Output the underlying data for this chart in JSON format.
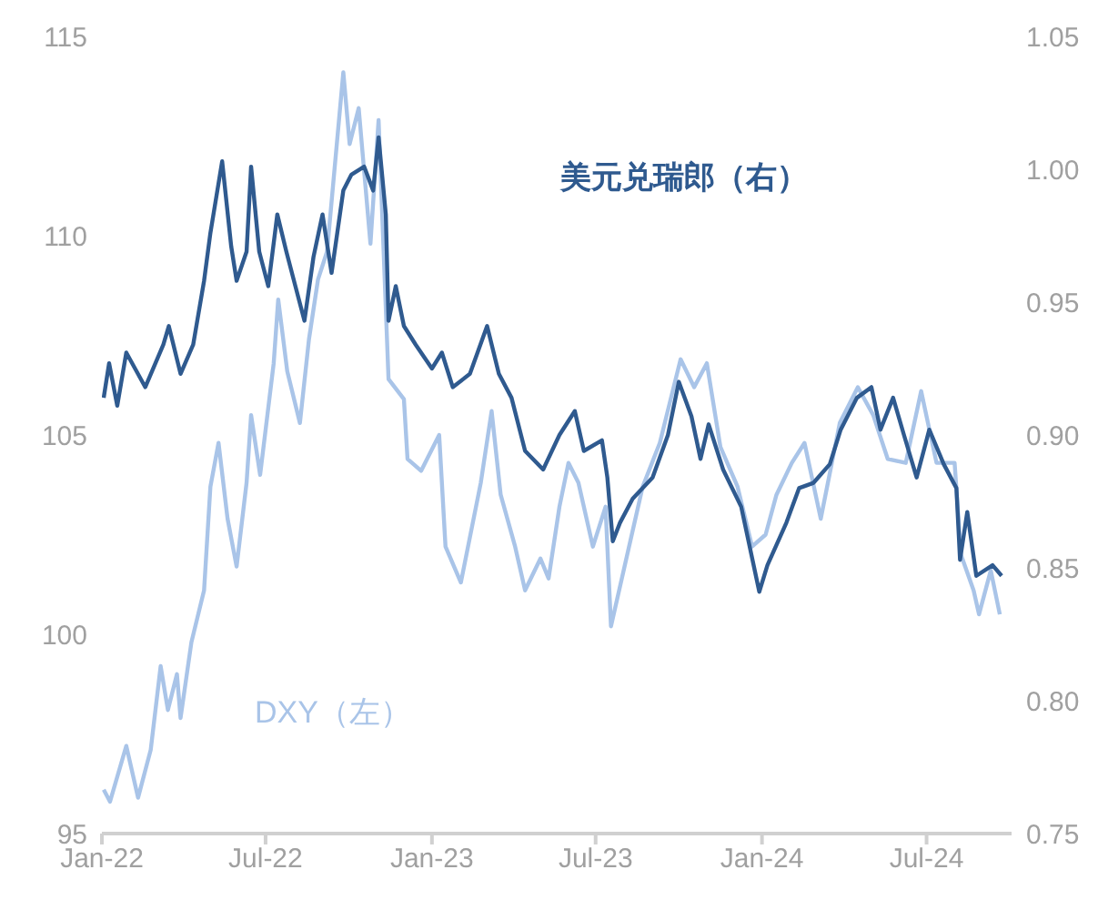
{
  "chart_data": {
    "type": "line",
    "xlim": [
      "2022-01-01",
      "2024-10-03"
    ],
    "xticks": [
      {
        "value": "2022-01-01",
        "label": "Jan-22"
      },
      {
        "value": "2022-07-01",
        "label": "Jul-22"
      },
      {
        "value": "2023-01-01",
        "label": "Jan-23"
      },
      {
        "value": "2023-07-01",
        "label": "Jul-23"
      },
      {
        "value": "2024-01-01",
        "label": "Jan-24"
      },
      {
        "value": "2024-07-01",
        "label": "Jul-24"
      }
    ],
    "ylim": [
      95,
      115
    ],
    "yticks": [
      95,
      100,
      105,
      110,
      115
    ],
    "y2lim": [
      0.75,
      1.05
    ],
    "y2ticks": [
      {
        "value": 0.75,
        "label": "0.75"
      },
      {
        "value": 0.8,
        "label": "0.80"
      },
      {
        "value": 0.85,
        "label": "0.85"
      },
      {
        "value": 0.9,
        "label": "0.90"
      },
      {
        "value": 0.95,
        "label": "0.95"
      },
      {
        "value": 1.0,
        "label": "1.00"
      },
      {
        "value": 1.05,
        "label": "1.05"
      }
    ],
    "marker": "none",
    "line_style": "solid",
    "series": [
      {
        "name": "DXY（左）",
        "color": "#a9c4e8",
        "axis": "y",
        "x": [
          "2022-01-03",
          "2022-01-10",
          "2022-01-28",
          "2022-02-10",
          "2022-02-24",
          "2022-03-07",
          "2022-03-15",
          "2022-03-25",
          "2022-03-29",
          "2022-04-10",
          "2022-04-24",
          "2022-05-01",
          "2022-05-10",
          "2022-05-20",
          "2022-05-30",
          "2022-06-10",
          "2022-06-15",
          "2022-06-25",
          "2022-07-10",
          "2022-07-15",
          "2022-07-25",
          "2022-08-08",
          "2022-08-18",
          "2022-08-28",
          "2022-09-07",
          "2022-09-25",
          "2022-10-02",
          "2022-10-12",
          "2022-10-25",
          "2022-11-03",
          "2022-11-14",
          "2022-12-01",
          "2022-12-05",
          "2022-12-20",
          "2023-01-09",
          "2023-01-16",
          "2023-02-02",
          "2023-02-24",
          "2023-03-08",
          "2023-03-18",
          "2023-04-03",
          "2023-04-14",
          "2023-05-01",
          "2023-05-10",
          "2023-05-22",
          "2023-06-01",
          "2023-06-12",
          "2023-06-28",
          "2023-07-12",
          "2023-07-18",
          "2023-08-02",
          "2023-08-22",
          "2023-09-10",
          "2023-10-03",
          "2023-10-18",
          "2023-11-01",
          "2023-11-16",
          "2023-12-05",
          "2023-12-21",
          "2024-01-05",
          "2024-01-17",
          "2024-02-03",
          "2024-02-17",
          "2024-03-06",
          "2024-03-27",
          "2024-04-16",
          "2024-05-03",
          "2024-05-19",
          "2024-06-08",
          "2024-06-25",
          "2024-07-12",
          "2024-08-01",
          "2024-08-08",
          "2024-08-22",
          "2024-08-28",
          "2024-09-10",
          "2024-09-20"
        ],
        "values": [
          96.1,
          95.8,
          97.2,
          95.9,
          97.1,
          99.2,
          98.1,
          99.0,
          97.9,
          99.8,
          101.1,
          103.7,
          104.8,
          102.9,
          101.7,
          103.8,
          105.5,
          104.0,
          106.8,
          108.4,
          106.6,
          105.3,
          107.4,
          108.9,
          109.6,
          114.1,
          112.3,
          113.2,
          109.8,
          112.9,
          106.4,
          105.9,
          104.4,
          104.1,
          105.0,
          102.2,
          101.3,
          103.8,
          105.6,
          103.5,
          102.2,
          101.1,
          101.9,
          101.4,
          103.2,
          104.3,
          103.8,
          102.2,
          103.2,
          100.2,
          101.7,
          103.7,
          104.8,
          106.9,
          106.2,
          106.8,
          104.7,
          103.7,
          102.2,
          102.5,
          103.5,
          104.3,
          104.8,
          102.9,
          105.3,
          106.2,
          105.5,
          104.4,
          104.3,
          106.1,
          104.3,
          104.3,
          102.0,
          101.1,
          100.5,
          101.6,
          100.5
        ]
      },
      {
        "name": "美元兑瑞郎（右）",
        "color": "#2f5a8f",
        "axis": "y2",
        "x": [
          "2022-01-03",
          "2022-01-09",
          "2022-01-18",
          "2022-01-28",
          "2022-02-18",
          "2022-03-10",
          "2022-03-16",
          "2022-03-29",
          "2022-04-12",
          "2022-04-24",
          "2022-05-01",
          "2022-05-14",
          "2022-05-24",
          "2022-05-30",
          "2022-06-10",
          "2022-06-15",
          "2022-06-24",
          "2022-07-04",
          "2022-07-14",
          "2022-07-24",
          "2022-08-03",
          "2022-08-13",
          "2022-08-23",
          "2022-09-02",
          "2022-09-12",
          "2022-09-25",
          "2022-10-04",
          "2022-10-18",
          "2022-10-28",
          "2022-11-03",
          "2022-11-11",
          "2022-11-14",
          "2022-11-22",
          "2022-12-01",
          "2022-12-14",
          "2023-01-01",
          "2023-01-12",
          "2023-01-24",
          "2023-02-12",
          "2023-03-03",
          "2023-03-16",
          "2023-03-30",
          "2023-04-14",
          "2023-05-04",
          "2023-05-22",
          "2023-06-08",
          "2023-06-18",
          "2023-07-08",
          "2023-07-14",
          "2023-07-20",
          "2023-07-28",
          "2023-08-11",
          "2023-09-02",
          "2023-09-19",
          "2023-10-01",
          "2023-10-15",
          "2023-10-25",
          "2023-11-03",
          "2023-11-19",
          "2023-12-09",
          "2023-12-29",
          "2024-01-07",
          "2024-01-28",
          "2024-02-11",
          "2024-02-27",
          "2024-03-16",
          "2024-03-28",
          "2024-04-15",
          "2024-05-01",
          "2024-05-11",
          "2024-05-25",
          "2024-06-06",
          "2024-06-20",
          "2024-07-04",
          "2024-07-20",
          "2024-08-03",
          "2024-08-07",
          "2024-08-15",
          "2024-08-25",
          "2024-09-12",
          "2024-09-22"
        ],
        "values": [
          0.914,
          0.927,
          0.911,
          0.931,
          0.918,
          0.934,
          0.941,
          0.923,
          0.934,
          0.958,
          0.976,
          1.003,
          0.971,
          0.958,
          0.969,
          1.001,
          0.969,
          0.956,
          0.983,
          0.969,
          0.956,
          0.943,
          0.967,
          0.983,
          0.961,
          0.992,
          0.998,
          1.001,
          0.992,
          1.012,
          0.983,
          0.943,
          0.956,
          0.941,
          0.934,
          0.925,
          0.931,
          0.918,
          0.923,
          0.941,
          0.923,
          0.914,
          0.894,
          0.887,
          0.9,
          0.909,
          0.894,
          0.898,
          0.884,
          0.86,
          0.867,
          0.876,
          0.884,
          0.9,
          0.92,
          0.907,
          0.891,
          0.904,
          0.887,
          0.873,
          0.841,
          0.851,
          0.867,
          0.88,
          0.882,
          0.889,
          0.902,
          0.914,
          0.918,
          0.902,
          0.914,
          0.9,
          0.884,
          0.902,
          0.889,
          0.88,
          0.853,
          0.871,
          0.847,
          0.851,
          0.847
        ]
      }
    ]
  }
}
